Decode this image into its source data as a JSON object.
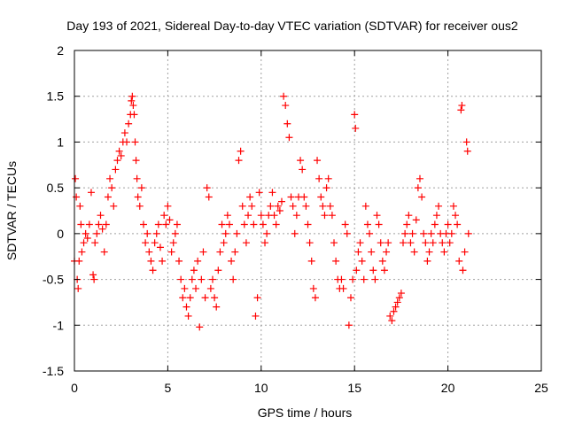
{
  "chart_data": {
    "type": "scatter",
    "title": "Day 193 of 2021, Sidereal Day-to-day VTEC variation (SDTVAR) for receiver ous2",
    "xlabel": "GPS time / hours",
    "ylabel": "SDTVAR / TECUs",
    "xlim": [
      0,
      25
    ],
    "ylim": [
      -1.5,
      2
    ],
    "x_ticks": [
      0,
      5,
      10,
      15,
      20,
      25
    ],
    "y_ticks": [
      -1.5,
      -1,
      -0.5,
      0,
      0.5,
      1,
      1.5,
      2
    ],
    "x_tick_labels": [
      "0",
      "5",
      "10",
      "15",
      "20",
      "25"
    ],
    "y_tick_labels": [
      "-1.5",
      "-1",
      "-0.5",
      "0",
      "0.5",
      "1",
      "1.5",
      "2"
    ],
    "grid": true,
    "marker": "+",
    "color": "#ff0000",
    "series": [
      {
        "name": "SDTVAR",
        "points": [
          [
            0.0,
            -0.3
          ],
          [
            0.05,
            0.6
          ],
          [
            0.1,
            0.4
          ],
          [
            0.15,
            -0.5
          ],
          [
            0.2,
            -0.6
          ],
          [
            0.25,
            -0.3
          ],
          [
            0.3,
            0.3
          ],
          [
            0.35,
            0.1
          ],
          [
            0.4,
            -0.2
          ],
          [
            0.5,
            -0.1
          ],
          [
            0.6,
            0.0
          ],
          [
            0.7,
            -0.05
          ],
          [
            0.8,
            0.1
          ],
          [
            0.9,
            0.45
          ],
          [
            1.0,
            -0.45
          ],
          [
            1.05,
            -0.5
          ],
          [
            1.1,
            -0.1
          ],
          [
            1.2,
            0.0
          ],
          [
            1.3,
            0.1
          ],
          [
            1.4,
            0.2
          ],
          [
            1.5,
            0.05
          ],
          [
            1.6,
            -0.2
          ],
          [
            1.7,
            0.1
          ],
          [
            1.8,
            0.4
          ],
          [
            1.9,
            0.6
          ],
          [
            2.0,
            0.5
          ],
          [
            2.1,
            0.3
          ],
          [
            2.2,
            0.7
          ],
          [
            2.3,
            0.8
          ],
          [
            2.4,
            0.9
          ],
          [
            2.5,
            0.85
          ],
          [
            2.6,
            1.0
          ],
          [
            2.7,
            1.1
          ],
          [
            2.8,
            1.0
          ],
          [
            2.9,
            1.2
          ],
          [
            3.0,
            1.3
          ],
          [
            3.05,
            1.45
          ],
          [
            3.1,
            1.5
          ],
          [
            3.15,
            1.4
          ],
          [
            3.2,
            1.3
          ],
          [
            3.25,
            1.0
          ],
          [
            3.3,
            0.8
          ],
          [
            3.35,
            0.6
          ],
          [
            3.4,
            0.4
          ],
          [
            3.5,
            0.3
          ],
          [
            3.6,
            0.5
          ],
          [
            3.7,
            0.1
          ],
          [
            3.8,
            -0.1
          ],
          [
            3.9,
            0.0
          ],
          [
            4.0,
            -0.2
          ],
          [
            4.1,
            -0.3
          ],
          [
            4.2,
            -0.4
          ],
          [
            4.3,
            -0.1
          ],
          [
            4.4,
            0.0
          ],
          [
            4.5,
            0.1
          ],
          [
            4.6,
            -0.15
          ],
          [
            4.7,
            -0.3
          ],
          [
            4.8,
            0.2
          ],
          [
            4.9,
            0.1
          ],
          [
            5.0,
            0.3
          ],
          [
            5.1,
            0.15
          ],
          [
            5.2,
            -0.2
          ],
          [
            5.3,
            -0.1
          ],
          [
            5.4,
            0.0
          ],
          [
            5.5,
            0.1
          ],
          [
            5.6,
            -0.3
          ],
          [
            5.7,
            -0.5
          ],
          [
            5.8,
            -0.7
          ],
          [
            5.9,
            -0.6
          ],
          [
            6.0,
            -0.8
          ],
          [
            6.1,
            -0.9
          ],
          [
            6.2,
            -0.7
          ],
          [
            6.3,
            -0.5
          ],
          [
            6.4,
            -0.4
          ],
          [
            6.5,
            -0.6
          ],
          [
            6.6,
            -0.3
          ],
          [
            6.7,
            -1.02
          ],
          [
            6.8,
            -0.5
          ],
          [
            6.9,
            -0.2
          ],
          [
            7.0,
            -0.7
          ],
          [
            7.1,
            0.5
          ],
          [
            7.2,
            0.4
          ],
          [
            7.3,
            -0.6
          ],
          [
            7.4,
            -0.5
          ],
          [
            7.5,
            -0.7
          ],
          [
            7.6,
            -0.8
          ],
          [
            7.7,
            -0.4
          ],
          [
            7.8,
            -0.2
          ],
          [
            7.9,
            0.1
          ],
          [
            8.0,
            -0.1
          ],
          [
            8.1,
            0.0
          ],
          [
            8.2,
            0.2
          ],
          [
            8.3,
            0.1
          ],
          [
            8.4,
            -0.3
          ],
          [
            8.5,
            -0.5
          ],
          [
            8.6,
            -0.2
          ],
          [
            8.7,
            0.0
          ],
          [
            8.8,
            0.8
          ],
          [
            8.9,
            0.9
          ],
          [
            9.0,
            0.3
          ],
          [
            9.1,
            0.1
          ],
          [
            9.2,
            -0.1
          ],
          [
            9.3,
            0.2
          ],
          [
            9.4,
            0.4
          ],
          [
            9.5,
            0.3
          ],
          [
            9.6,
            0.1
          ],
          [
            9.7,
            -0.9
          ],
          [
            9.8,
            -0.7
          ],
          [
            9.9,
            0.45
          ],
          [
            10.0,
            0.2
          ],
          [
            10.1,
            0.1
          ],
          [
            10.2,
            -0.1
          ],
          [
            10.3,
            0.0
          ],
          [
            10.4,
            0.2
          ],
          [
            10.5,
            0.3
          ],
          [
            10.6,
            0.45
          ],
          [
            10.7,
            0.2
          ],
          [
            10.8,
            0.1
          ],
          [
            10.9,
            0.3
          ],
          [
            11.0,
            0.25
          ],
          [
            11.1,
            0.35
          ],
          [
            11.2,
            1.5
          ],
          [
            11.3,
            1.4
          ],
          [
            11.4,
            1.2
          ],
          [
            11.5,
            1.05
          ],
          [
            11.6,
            0.4
          ],
          [
            11.7,
            0.3
          ],
          [
            11.8,
            0.0
          ],
          [
            11.9,
            0.2
          ],
          [
            12.0,
            0.4
          ],
          [
            12.1,
            0.8
          ],
          [
            12.2,
            0.7
          ],
          [
            12.3,
            0.4
          ],
          [
            12.4,
            0.3
          ],
          [
            12.5,
            0.1
          ],
          [
            12.6,
            -0.1
          ],
          [
            12.7,
            -0.3
          ],
          [
            12.8,
            -0.6
          ],
          [
            12.9,
            -0.7
          ],
          [
            13.0,
            0.8
          ],
          [
            13.1,
            0.6
          ],
          [
            13.2,
            0.4
          ],
          [
            13.3,
            0.3
          ],
          [
            13.4,
            0.2
          ],
          [
            13.5,
            0.5
          ],
          [
            13.6,
            0.6
          ],
          [
            13.7,
            0.3
          ],
          [
            13.8,
            0.2
          ],
          [
            13.9,
            -0.1
          ],
          [
            14.0,
            -0.3
          ],
          [
            14.1,
            -0.5
          ],
          [
            14.2,
            -0.6
          ],
          [
            14.3,
            -0.5
          ],
          [
            14.4,
            -0.6
          ],
          [
            14.5,
            0.1
          ],
          [
            14.6,
            0.0
          ],
          [
            14.7,
            -1.0
          ],
          [
            14.8,
            -0.7
          ],
          [
            14.9,
            -0.5
          ],
          [
            15.0,
            1.3
          ],
          [
            15.05,
            1.15
          ],
          [
            15.1,
            -0.4
          ],
          [
            15.2,
            -0.2
          ],
          [
            15.3,
            -0.1
          ],
          [
            15.4,
            -0.3
          ],
          [
            15.5,
            -0.5
          ],
          [
            15.6,
            0.3
          ],
          [
            15.7,
            0.1
          ],
          [
            15.8,
            0.0
          ],
          [
            15.9,
            -0.2
          ],
          [
            16.0,
            -0.4
          ],
          [
            16.1,
            -0.5
          ],
          [
            16.2,
            0.2
          ],
          [
            16.3,
            0.1
          ],
          [
            16.4,
            -0.1
          ],
          [
            16.5,
            -0.3
          ],
          [
            16.6,
            -0.4
          ],
          [
            16.7,
            -0.2
          ],
          [
            16.8,
            -0.1
          ],
          [
            16.9,
            -0.9
          ],
          [
            17.0,
            -0.95
          ],
          [
            17.1,
            -0.85
          ],
          [
            17.2,
            -0.8
          ],
          [
            17.3,
            -0.75
          ],
          [
            17.4,
            -0.7
          ],
          [
            17.5,
            -0.65
          ],
          [
            17.6,
            -0.1
          ],
          [
            17.7,
            0.0
          ],
          [
            17.8,
            0.1
          ],
          [
            17.9,
            0.2
          ],
          [
            18.0,
            -0.1
          ],
          [
            18.1,
            0.0
          ],
          [
            18.2,
            -0.2
          ],
          [
            18.3,
            0.15
          ],
          [
            18.4,
            0.5
          ],
          [
            18.5,
            0.6
          ],
          [
            18.6,
            0.4
          ],
          [
            18.7,
            0.0
          ],
          [
            18.8,
            -0.1
          ],
          [
            18.9,
            -0.3
          ],
          [
            19.0,
            -0.2
          ],
          [
            19.1,
            0.0
          ],
          [
            19.2,
            -0.1
          ],
          [
            19.3,
            0.1
          ],
          [
            19.4,
            0.2
          ],
          [
            19.5,
            0.3
          ],
          [
            19.6,
            0.0
          ],
          [
            19.7,
            -0.1
          ],
          [
            19.8,
            -0.2
          ],
          [
            19.9,
            0.0
          ],
          [
            20.0,
            0.1
          ],
          [
            20.1,
            -0.1
          ],
          [
            20.2,
            0.0
          ],
          [
            20.3,
            0.3
          ],
          [
            20.4,
            0.2
          ],
          [
            20.5,
            0.1
          ],
          [
            20.6,
            -0.3
          ],
          [
            20.7,
            1.35
          ],
          [
            20.75,
            1.4
          ],
          [
            20.8,
            -0.4
          ],
          [
            20.9,
            -0.2
          ],
          [
            21.0,
            1.0
          ],
          [
            21.05,
            0.9
          ],
          [
            21.1,
            0.0
          ]
        ]
      }
    ]
  }
}
